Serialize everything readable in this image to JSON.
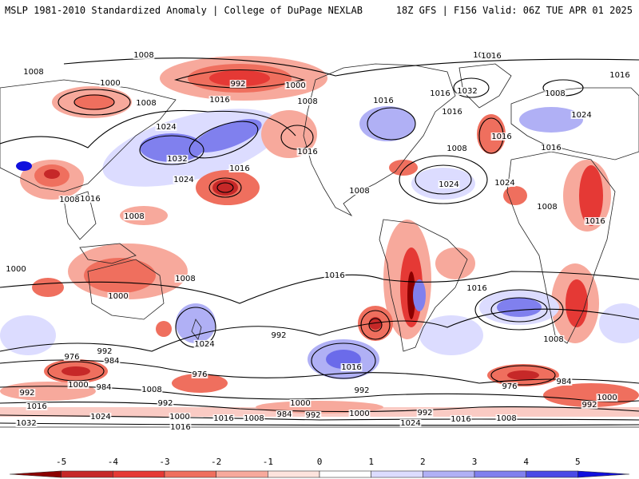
{
  "header": {
    "left": "MSLP 1981-2010 Standardized Anomaly | College of DuPage NEXLAB",
    "right": "18Z GFS | F156 Valid: 06Z TUE APR 01 2025"
  },
  "colorbar": {
    "ticks": [
      "-5",
      "-4",
      "-3",
      "-2",
      "-1",
      "0",
      "1",
      "2",
      "3",
      "4",
      "5"
    ],
    "colors": [
      "#8b0000",
      "#c62828",
      "#e53935",
      "#ef6f5e",
      "#f7a99c",
      "#fde3dd",
      "#ffffff",
      "#dcdcff",
      "#b0b0f5",
      "#8080ee",
      "#4a4ae6",
      "#1010dd"
    ]
  },
  "map": {
    "contour_labels": [
      "1008",
      "1008",
      "1000",
      "1008",
      "1016",
      "992",
      "1000",
      "1008",
      "1016",
      "1024",
      "1032",
      "1016",
      "1016",
      "1024",
      "1032",
      "1016",
      "1024",
      "1008",
      "1016",
      "1008",
      "1016",
      "1008",
      "1024",
      "1016",
      "1016",
      "1008",
      "1024",
      "1016",
      "1016",
      "1008",
      "1024",
      "1008",
      "1016",
      "1000",
      "1008",
      "1000",
      "1016",
      "992",
      "1024",
      "1016",
      "1008",
      "976",
      "992",
      "984",
      "976",
      "1000",
      "984",
      "1008",
      "992",
      "992",
      "1016",
      "1024",
      "1000",
      "1016",
      "1008",
      "984",
      "992",
      "1000",
      "992",
      "1032",
      "1024",
      "1016",
      "1008",
      "1000",
      "992",
      "976",
      "984",
      "1000",
      "992",
      "1016",
      "1016"
    ],
    "anomaly_colors": {
      "strong_neg": "#e53935",
      "mod_neg": "#ef6f5e",
      "weak_neg": "#f7a99c",
      "weak_pos": "#dcdcff",
      "mod_pos": "#b0b0f5",
      "strong_pos": "#6b6bea"
    }
  }
}
